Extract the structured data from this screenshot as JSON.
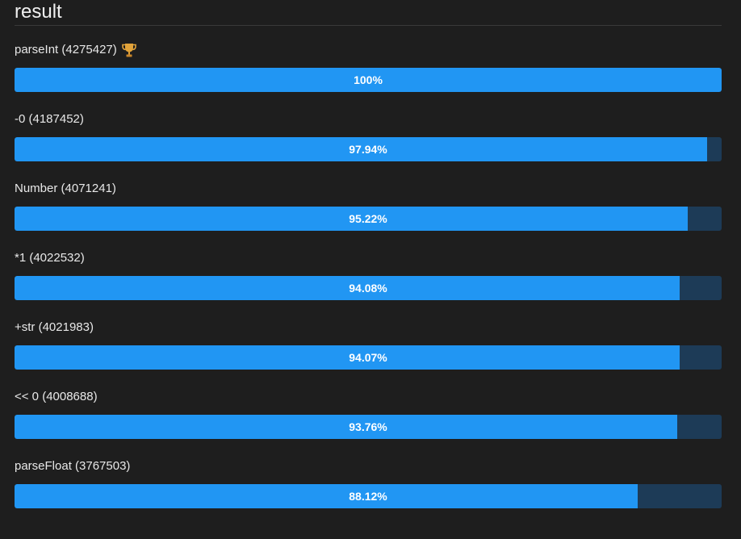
{
  "section": {
    "title": "result"
  },
  "colors": {
    "bar_fill": "#2196f3",
    "bar_track": "#1d3b57",
    "trophy": "#e2a33a"
  },
  "chart_data": {
    "type": "bar",
    "orientation": "horizontal",
    "categories": [
      "parseInt",
      "-0",
      "Number",
      "*1",
      "+str",
      "<< 0",
      "parseFloat"
    ],
    "scores": [
      4275427,
      4187452,
      4071241,
      4022532,
      4021983,
      4008688,
      3767503
    ],
    "values": [
      100,
      97.94,
      95.22,
      94.08,
      94.07,
      93.76,
      88.12
    ],
    "ylim": [
      0,
      100
    ]
  },
  "results": [
    {
      "label": "parseInt (4275427)",
      "percent_text": "100%",
      "value": 100,
      "winner_icon": "trophy-icon"
    },
    {
      "label": "-0 (4187452)",
      "percent_text": "97.94%",
      "value": 97.94
    },
    {
      "label": "Number (4071241)",
      "percent_text": "95.22%",
      "value": 95.22
    },
    {
      "label": "*1 (4022532)",
      "percent_text": "94.08%",
      "value": 94.08
    },
    {
      "label": "+str (4021983)",
      "percent_text": "94.07%",
      "value": 94.07
    },
    {
      "label": "<< 0 (4008688)",
      "percent_text": "93.76%",
      "value": 93.76
    },
    {
      "label": "parseFloat (3767503)",
      "percent_text": "88.12%",
      "value": 88.12
    }
  ]
}
